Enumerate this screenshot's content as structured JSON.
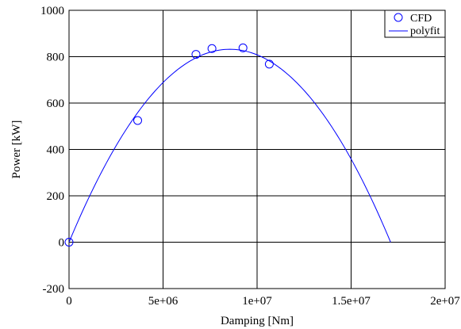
{
  "chart_data": {
    "type": "scatter",
    "xlabel": "Damping [Nm]",
    "ylabel": "Power [kW]",
    "xlim": [
      0,
      20000000
    ],
    "ylim": [
      -200,
      1000
    ],
    "x_ticks": [
      {
        "value": 0,
        "label": "0"
      },
      {
        "value": 5000000,
        "label": "5e+06"
      },
      {
        "value": 10000000,
        "label": "1e+07"
      },
      {
        "value": 15000000,
        "label": "1.5e+07"
      },
      {
        "value": 20000000,
        "label": "2e+07"
      }
    ],
    "y_ticks": [
      {
        "value": -200,
        "label": "-200"
      },
      {
        "value": 0,
        "label": "0"
      },
      {
        "value": 200,
        "label": "200"
      },
      {
        "value": 400,
        "label": "400"
      },
      {
        "value": 600,
        "label": "600"
      },
      {
        "value": 800,
        "label": "800"
      },
      {
        "value": 1000,
        "label": "1000"
      }
    ],
    "grid": true,
    "legend": {
      "position": "top-right"
    },
    "colors": {
      "series": "#0000ff",
      "grid": "#000000"
    },
    "series": [
      {
        "name": "CFD",
        "kind": "scatter",
        "marker": "open-circle",
        "points": [
          {
            "x": 0,
            "y": 0
          },
          {
            "x": 3650000,
            "y": 525
          },
          {
            "x": 6750000,
            "y": 810
          },
          {
            "x": 7600000,
            "y": 835
          },
          {
            "x": 9250000,
            "y": 838
          },
          {
            "x": 10650000,
            "y": 768
          }
        ]
      },
      {
        "name": "polyfit",
        "kind": "line",
        "x_range": [
          0,
          17100000
        ],
        "points": [
          {
            "x": 0,
            "y": 0
          },
          {
            "x": 8550000,
            "y": 832
          },
          {
            "x": 17100000,
            "y": 0
          }
        ]
      }
    ]
  }
}
